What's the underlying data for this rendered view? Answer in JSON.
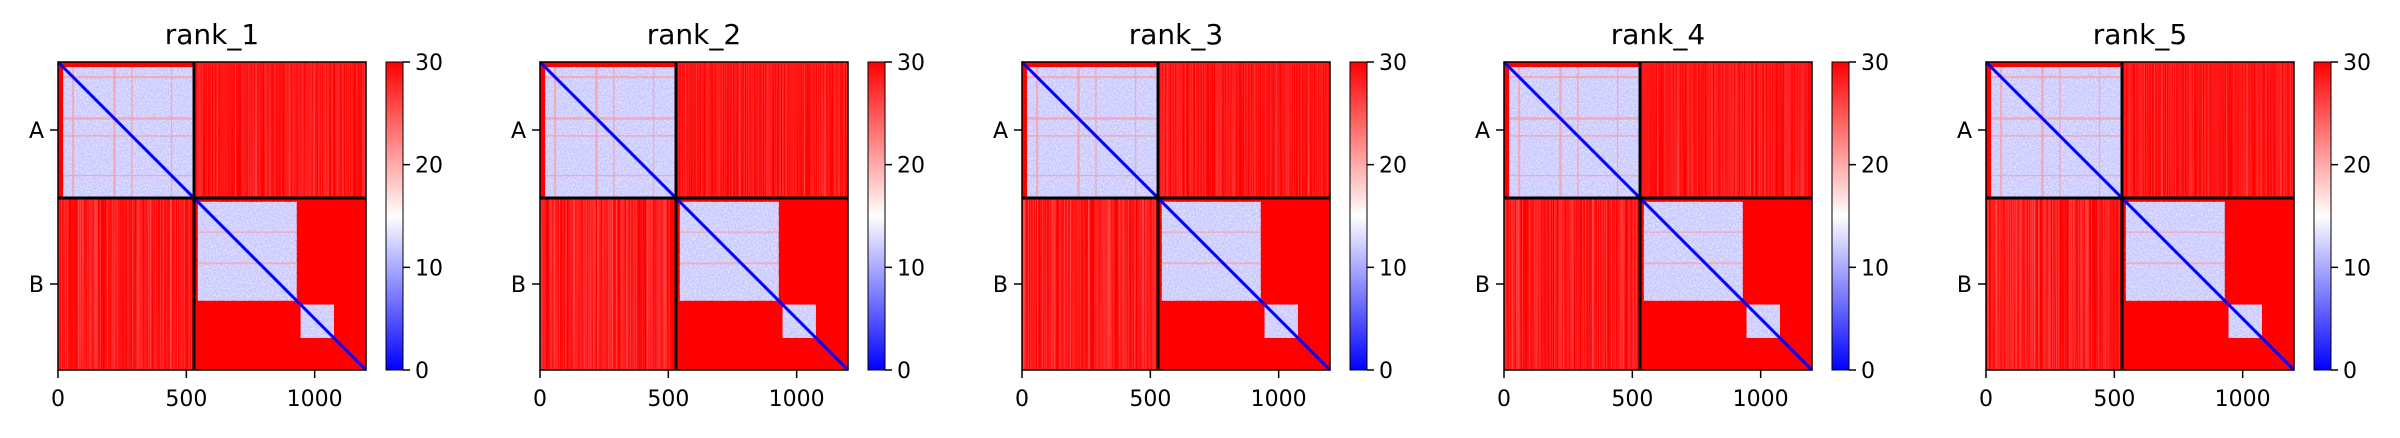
{
  "chart_data": {
    "type": "heatmap",
    "description_units": "predicted aligned error matrix, residue index vs residue index",
    "panels": [
      {
        "title": "rank_1"
      },
      {
        "title": "rank_2"
      },
      {
        "title": "rank_3"
      },
      {
        "title": "rank_4"
      },
      {
        "title": "rank_5"
      }
    ],
    "x_range": [
      0,
      1200
    ],
    "x_ticks": [
      0,
      500,
      1000
    ],
    "y_chain_labels": [
      "A",
      "B"
    ],
    "chain_boundary": 530,
    "total_length": 1200,
    "colorbar": {
      "range": [
        0,
        30
      ],
      "ticks": [
        0,
        10,
        20,
        30
      ],
      "colors": {
        "low": "#0000ff",
        "mid": "#ffffff",
        "high": "#ff0000"
      }
    },
    "separator_color": "#000000"
  }
}
